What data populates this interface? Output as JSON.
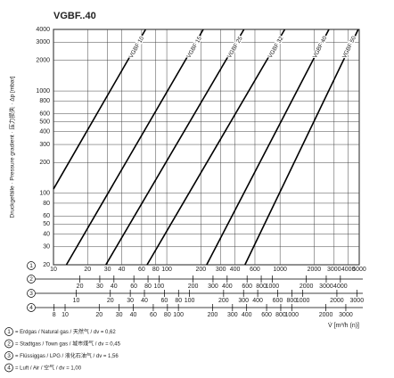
{
  "chart_data": {
    "type": "line",
    "title": "VGBF..40",
    "ylabel": "Druckgefälle · Pressure gradient · 压力损失 · Δp [mbar]",
    "xlabel": "V̇ [m³/h (n)]",
    "xscale": "log",
    "yscale": "log",
    "grid": true,
    "xlim": [
      10,
      5000
    ],
    "ylim": [
      20,
      4000
    ],
    "axis_marker": "1",
    "xticks": [
      10,
      20,
      30,
      40,
      60,
      80,
      100,
      200,
      300,
      400,
      600,
      1000,
      2000,
      3000,
      4000,
      5000
    ],
    "yticks": [
      20,
      30,
      40,
      50,
      60,
      80,
      100,
      200,
      300,
      400,
      500,
      600,
      800,
      1000,
      2000,
      3000,
      4000
    ],
    "series": [
      {
        "name": "VGBF 10",
        "color": "#000000",
        "x": [
          10,
          65
        ],
        "y": [
          110,
          4000
        ]
      },
      {
        "name": "VGBF 15",
        "color": "#000000",
        "x": [
          13,
          210
        ],
        "y": [
          20,
          4000
        ]
      },
      {
        "name": "VGBF 25",
        "color": "#000000",
        "x": [
          29,
          480
        ],
        "y": [
          20,
          4000
        ]
      },
      {
        "name": "VGBF 32",
        "color": "#000000",
        "x": [
          67,
          1100
        ],
        "y": [
          20,
          4000
        ]
      },
      {
        "name": "VGBF 40",
        "color": "#000000",
        "x": [
          225,
          2700
        ],
        "y": [
          20,
          4000
        ]
      },
      {
        "name": "VGBF 50",
        "color": "#000000",
        "x": [
          490,
          4900
        ],
        "y": [
          20,
          4000
        ]
      }
    ],
    "extra_x_axes": [
      {
        "marker": "2",
        "xlim": [
          11.7,
          5870
        ],
        "xticks": [
          20,
          30,
          40,
          60,
          80,
          100,
          200,
          300,
          400,
          600,
          800,
          1000,
          2000,
          3000,
          4000
        ]
      },
      {
        "marker": "3",
        "xlim": [
          6.3,
          3150
        ],
        "xticks": [
          10,
          20,
          30,
          40,
          60,
          80,
          100,
          200,
          300,
          400,
          600,
          800,
          1000,
          2000,
          3000
        ]
      },
      {
        "marker": "4",
        "xlim": [
          7.9,
          3940
        ],
        "xticks": [
          8,
          10,
          20,
          30,
          40,
          60,
          80,
          100,
          200,
          300,
          400,
          600,
          800,
          1000,
          2000,
          3000
        ]
      }
    ],
    "notes": [
      {
        "marker": "1",
        "text": "= Erdgas / Natural gas / 天然气 / dv = 0,62"
      },
      {
        "marker": "2",
        "text": "= Stadtgas / Town gas / 城市煤气 / dv = 0,45"
      },
      {
        "marker": "3",
        "text": "= Flüssiggas / LPG / 液化石油气 / dv = 1,56"
      },
      {
        "marker": "4",
        "text": "= Luft / Air / 空气 / dv = 1,00"
      }
    ]
  }
}
